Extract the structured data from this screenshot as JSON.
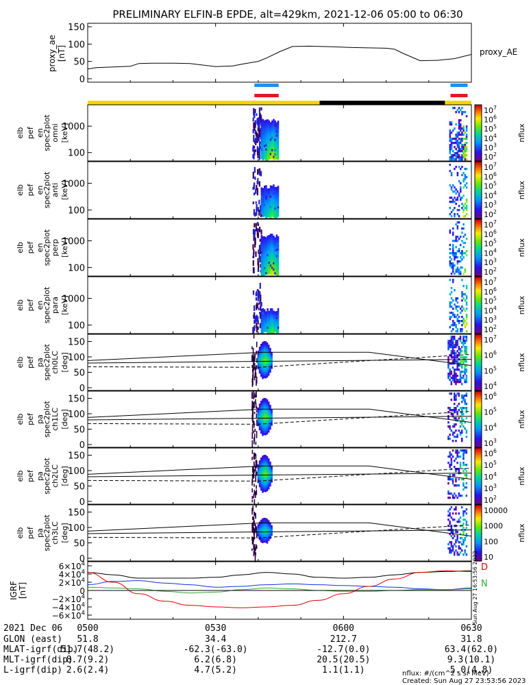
{
  "title": "PRELIMINARY ELFIN-B EPDE, alt=429km, 2021-12-06 05:00 to 06:30",
  "colors": {
    "bar_blue": "#1f8ff0",
    "bar_red": "#e8141e",
    "bar_yellow": "#f5d400",
    "bar_black": "#000000",
    "bx": "#e00000",
    "by": "#2ea82e",
    "bz": "#1030e0"
  },
  "chart_data": [
    {
      "type": "line",
      "id": "proxy_ae",
      "ylabel": [
        "proxy_ae",
        "[nT]"
      ],
      "legend": "proxy_AE",
      "ylim": [
        -10,
        160
      ],
      "yticks": [
        "150",
        "100",
        "50",
        "0"
      ],
      "yticks_values": [
        150,
        100,
        50,
        0
      ],
      "x_minutes": [
        0,
        2,
        6,
        10,
        12,
        15,
        18,
        20,
        24,
        30,
        34,
        37,
        40,
        42,
        45,
        48,
        52,
        58,
        62,
        66,
        70,
        72,
        74,
        78,
        82,
        86,
        90
      ],
      "values": [
        28,
        32,
        34,
        36,
        44,
        45,
        45,
        45,
        44,
        35,
        37,
        44,
        50,
        60,
        78,
        93,
        94,
        92,
        90,
        89,
        88,
        85,
        73,
        52,
        53,
        58,
        70
      ]
    },
    {
      "type": "heatmap",
      "id": "omni",
      "ylabel": [
        "elb",
        "pef",
        "en",
        "spec2plot",
        "omni",
        "[keV]"
      ],
      "yticks": [
        "1000",
        "100"
      ],
      "cbar_label": "nflux",
      "cbar_ticks": [
        "10^7",
        "10^6",
        "10^5",
        "10^4",
        "10^3",
        "10^2"
      ]
    },
    {
      "type": "heatmap",
      "id": "anti",
      "ylabel": [
        "elb",
        "pef",
        "en",
        "spec2plot",
        "anti",
        "[keV]"
      ],
      "yticks": [
        "1000",
        "100"
      ],
      "cbar_label": "nflux",
      "cbar_ticks": [
        "10^7",
        "10^6",
        "10^5",
        "10^4",
        "10^3",
        "10^2"
      ]
    },
    {
      "type": "heatmap",
      "id": "perp",
      "ylabel": [
        "elb",
        "pef",
        "en",
        "spec2plot",
        "perp",
        "[keV]"
      ],
      "yticks": [
        "1000",
        "100"
      ],
      "cbar_label": "nflux",
      "cbar_ticks": [
        "10^7",
        "10^6",
        "10^5",
        "10^4",
        "10^3",
        "10^2"
      ]
    },
    {
      "type": "heatmap",
      "id": "para",
      "ylabel": [
        "elb",
        "pef",
        "en",
        "spec2plot",
        "para",
        "[keV]"
      ],
      "yticks": [
        "1000",
        "100"
      ],
      "cbar_label": "nflux",
      "cbar_ticks": [
        "10^7",
        "10^6",
        "10^5",
        "10^4",
        "10^3",
        "10^2"
      ]
    },
    {
      "type": "heatmap",
      "id": "ch0LC",
      "ylabel": [
        "elb",
        "pef",
        "pa",
        "spec2plot",
        "ch0LC",
        "[deg]"
      ],
      "yticks": [
        "150",
        "100",
        "50",
        "0"
      ],
      "cbar_label": "nflux",
      "cbar_ticks": [
        "10^7",
        "10^6",
        "10^5",
        "10^4"
      ]
    },
    {
      "type": "heatmap",
      "id": "ch1LC",
      "ylabel": [
        "elb",
        "pef",
        "pa",
        "spec2plot",
        "ch1LC",
        "[deg]"
      ],
      "yticks": [
        "150",
        "100",
        "50",
        "0"
      ],
      "cbar_label": "nflux",
      "cbar_ticks": [
        "10^6",
        "10^5",
        "10^4",
        "10^3"
      ]
    },
    {
      "type": "heatmap",
      "id": "ch2LC",
      "ylabel": [
        "elb",
        "pef",
        "pa",
        "spec2plot",
        "ch2LC",
        "[deg]"
      ],
      "yticks": [
        "150",
        "100",
        "50",
        "0"
      ],
      "cbar_label": "nflux",
      "cbar_ticks": [
        "10^6",
        "10^5",
        "10^4",
        "10^3",
        "10^2"
      ]
    },
    {
      "type": "heatmap",
      "id": "ch3LC",
      "ylabel": [
        "elb",
        "pef",
        "pa",
        "spec2plot",
        "ch3LC",
        "[deg]"
      ],
      "yticks": [
        "150",
        "100",
        "50",
        "0"
      ],
      "cbar_label": "nflux",
      "cbar_ticks": [
        "10000",
        "1000",
        "100",
        "10"
      ]
    },
    {
      "type": "line",
      "id": "igrf",
      "ylabel": [
        "IGRF",
        "[nT]"
      ],
      "ylim": [
        -70000,
        70000
      ],
      "yticks": [
        "6×10^4",
        "4×10^4",
        "2×10^4",
        "0",
        "−2×10^4",
        "−4×10^4",
        "−6×10^4"
      ],
      "yticks_values": [
        60000,
        40000,
        20000,
        0,
        -20000,
        -40000,
        -60000
      ],
      "legend": [
        "D",
        "N"
      ],
      "side_text": "Sun Aug 27 16:53:56 2023",
      "x_minutes": [
        0,
        6,
        12,
        18,
        24,
        30,
        36,
        42,
        48,
        54,
        60,
        66,
        72,
        78,
        84,
        90
      ],
      "series": [
        {
          "values": [
            44000,
            38000,
            30000,
            30000,
            30000,
            32000,
            38000,
            44000,
            40000,
            32000,
            30000,
            32000,
            38000,
            44000,
            46000,
            48000
          ]
        },
        {
          "values": [
            14000,
            22000,
            24000,
            18000,
            14000,
            8000,
            10000,
            14000,
            16000,
            14000,
            12000,
            10000,
            8000,
            4000,
            2000,
            6000
          ]
        },
        {
          "values": [
            8000,
            6000,
            4000,
            -2000,
            -6000,
            -4000,
            2000,
            6000,
            4000,
            0,
            -2000,
            -2000,
            0,
            2000,
            2000,
            4000
          ]
        },
        {
          "values": [
            44000,
            20000,
            -8000,
            -26000,
            -36000,
            -40000,
            -42000,
            -40000,
            -36000,
            -24000,
            -8000,
            10000,
            28000,
            44000,
            48000,
            46000
          ]
        }
      ]
    }
  ],
  "time_axis": {
    "date_label": "2021 Dec 06",
    "ticks": [
      "0500",
      "0530",
      "0600",
      "0630"
    ],
    "ticks_minutes": [
      0,
      30,
      60,
      90
    ]
  },
  "ephemeris": [
    {
      "label": "GLON (east)",
      "values": [
        "51.8",
        "34.4",
        "212.7",
        "31.8"
      ]
    },
    {
      "label": "MLAT-igrf(dip)",
      "values": [
        "51.7(48.2)",
        "-62.3(-63.0)",
        "-12.7(0.0)",
        "63.4(62.0)"
      ]
    },
    {
      "label": "MLT-igrf(dip)",
      "values": [
        "8.7(9.2)",
        "6.2(6.8)",
        "20.5(20.5)",
        "9.3(10.1)"
      ]
    },
    {
      "label": "L-igrf(dip)",
      "values": [
        "2.6(2.4)",
        "4.7(5.2)",
        "1.1(1.1)",
        "5.0(4.8)"
      ]
    }
  ],
  "footer": {
    "units": "nflux: #/(cm^2 s sr MeV)",
    "created": "Created: Sun Aug 27 23:53:56 2023"
  }
}
